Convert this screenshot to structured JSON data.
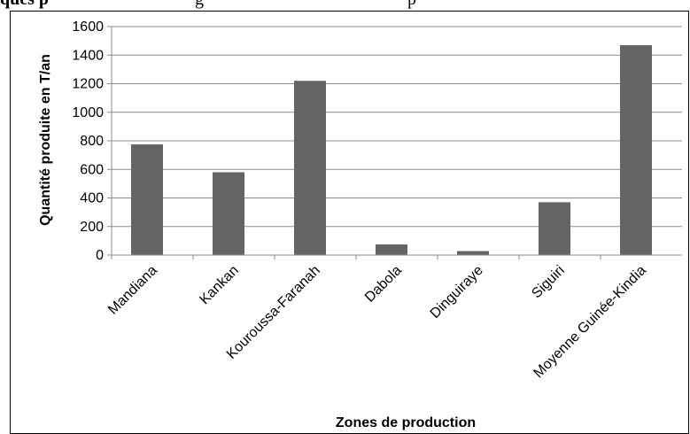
{
  "caption": {
    "bold_fragment": "ques p",
    "rest_fragment": "g",
    "tail_fragment": "p"
  },
  "chart_data": {
    "type": "bar",
    "title": "",
    "xlabel": "Zones de production",
    "ylabel": "Quantité produite en T/an",
    "categories": [
      "Mandiana",
      "Kankan",
      "Kouroussa-Faranah",
      "Dabola",
      "Dinguiraye",
      "Siguiri",
      "Moyenne Guinée-Kindia"
    ],
    "values": [
      775,
      580,
      1220,
      75,
      28,
      370,
      1470
    ],
    "ylim": [
      0,
      1600
    ],
    "yticks": [
      0,
      200,
      400,
      600,
      800,
      1000,
      1200,
      1400,
      1600
    ],
    "grid": true,
    "legend": "none",
    "colors": {
      "bar": "#646464",
      "grid": "#8c8c8c",
      "axis": "#8c8c8c"
    }
  }
}
